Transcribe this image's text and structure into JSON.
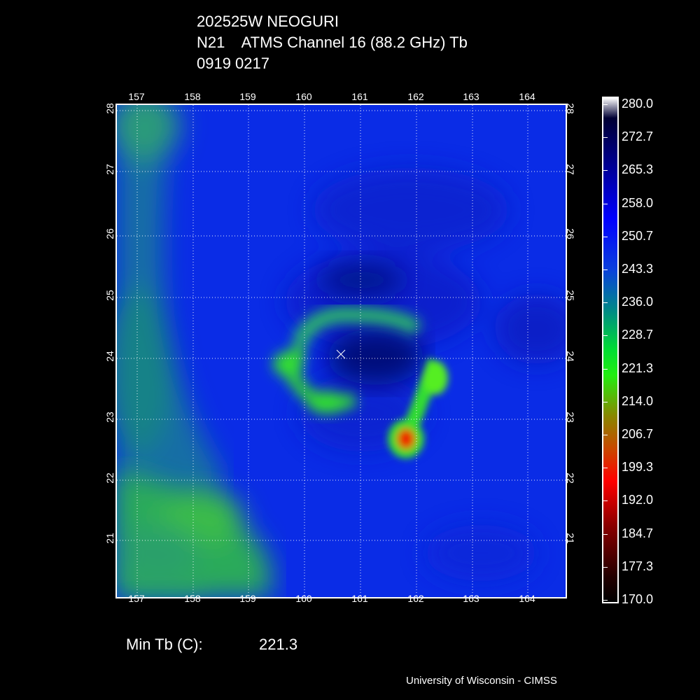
{
  "header": {
    "line1": "202525W NEOGURI",
    "line2": "N21    ATMS Channel 16 (88.2 GHz) Tb",
    "line3": "0919 0217"
  },
  "map": {
    "lon_labels": [
      "157",
      "158",
      "159",
      "160",
      "161",
      "162",
      "163",
      "164"
    ],
    "lat_labels": [
      "28",
      "27",
      "26",
      "25",
      "24",
      "23",
      "22",
      "21"
    ],
    "center_marker": "x-marker",
    "colors": {
      "background": "#0a2ce6",
      "cold_core": "#001166",
      "green": "#22dd22",
      "red": "#ee1100",
      "grid": "#ffffff"
    }
  },
  "colorbar": {
    "labels": [
      "280.0",
      "272.7",
      "265.3",
      "258.0",
      "250.7",
      "243.3",
      "236.0",
      "228.7",
      "221.3",
      "214.0",
      "206.7",
      "199.3",
      "192.0",
      "184.7",
      "177.3",
      "170.0"
    ]
  },
  "footer": {
    "min_label": "Min Tb (C):",
    "min_value": "221.3",
    "credit": "University of Wisconsin - CIMSS"
  }
}
